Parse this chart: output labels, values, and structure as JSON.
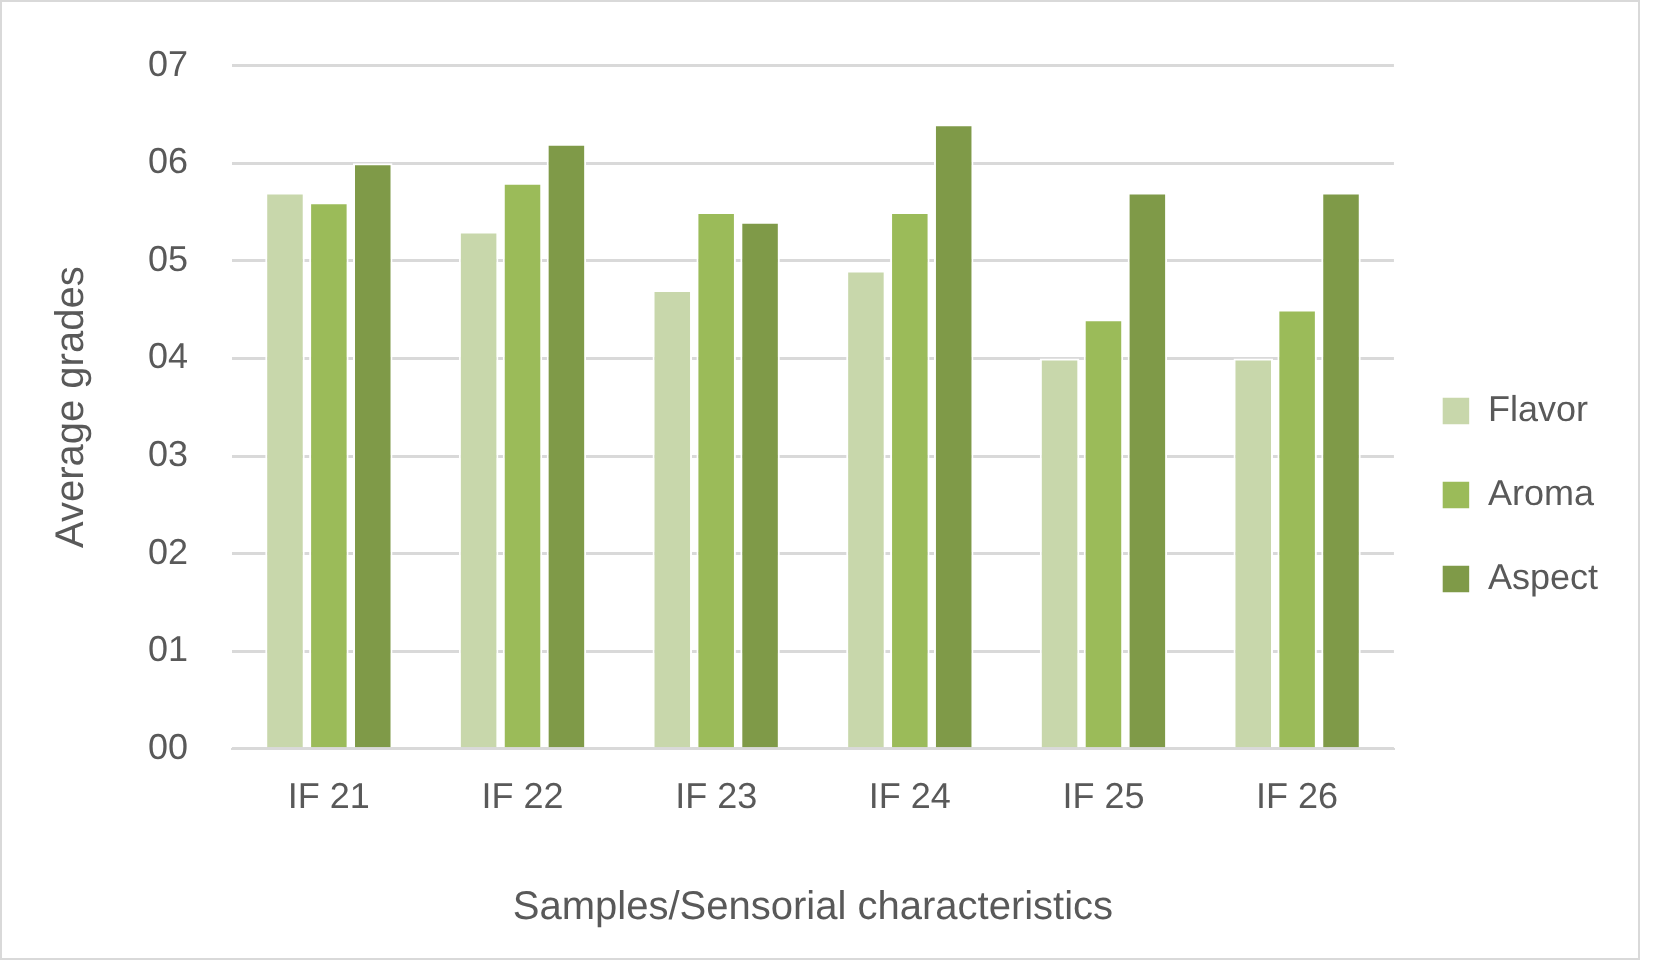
{
  "chart_data": {
    "type": "bar",
    "xlabel": "Samples/Sensorial characteristics",
    "ylabel": "Average grades",
    "categories": [
      "IF 21",
      "IF 22",
      "IF 23",
      "IF 24",
      "IF 25",
      "IF 26"
    ],
    "series": [
      {
        "name": "Flavor",
        "color": "#c8d7ab",
        "values": [
          5.7,
          5.3,
          4.7,
          4.9,
          4.0,
          4.0
        ]
      },
      {
        "name": "Aroma",
        "color": "#9bbb59",
        "values": [
          5.6,
          5.8,
          5.5,
          5.5,
          4.4,
          4.5
        ]
      },
      {
        "name": "Aspect",
        "color": "#7f9a48",
        "values": [
          6.0,
          6.2,
          5.4,
          6.4,
          5.7,
          5.7
        ]
      }
    ],
    "ylim": [
      0,
      7
    ],
    "yticks": [
      {
        "value": 0,
        "label": "00"
      },
      {
        "value": 1,
        "label": "01"
      },
      {
        "value": 2,
        "label": "02"
      },
      {
        "value": 3,
        "label": "03"
      },
      {
        "value": 4,
        "label": "04"
      },
      {
        "value": 5,
        "label": "05"
      },
      {
        "value": 6,
        "label": "06"
      },
      {
        "value": 7,
        "label": "07"
      }
    ],
    "grid": "y",
    "legend": "right"
  }
}
